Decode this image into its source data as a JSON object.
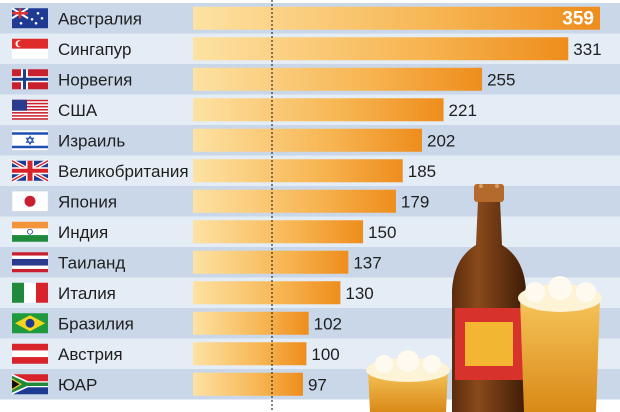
{
  "chart_data": {
    "type": "bar",
    "orientation": "horizontal",
    "title": "",
    "xlabel": "",
    "ylabel": "",
    "xlim": [
      0,
      359
    ],
    "categories": [
      "Австралия",
      "Сингапур",
      "Норвегия",
      "США",
      "Израиль",
      "Великобритания",
      "Япония",
      "Индия",
      "Таиланд",
      "Италия",
      "Бразилия",
      "Австрия",
      "ЮАР"
    ],
    "values": [
      359,
      331,
      255,
      221,
      202,
      185,
      179,
      150,
      137,
      130,
      102,
      100,
      97
    ],
    "value_labels": [
      "359",
      "331",
      "255",
      "221",
      "202",
      "185",
      "179",
      "150",
      "137",
      "130",
      "102",
      "100",
      "97"
    ],
    "flags": [
      "australia-flag-icon",
      "singapore-flag-icon",
      "norway-flag-icon",
      "usa-flag-icon",
      "israel-flag-icon",
      "uk-flag-icon",
      "japan-flag-icon",
      "india-flag-icon",
      "thailand-flag-icon",
      "italy-flag-icon",
      "brazil-flag-icon",
      "austria-flag-icon",
      "south-africa-flag-icon"
    ],
    "grid": false,
    "legend": "none"
  },
  "colors": {
    "stripe_dark": "#c9d7e8",
    "stripe_light": "#e4ecf5",
    "bar_light": "#fbd58a",
    "bar_dark": "#ef9320",
    "text": "#1f1f1f",
    "highlight_label": "#ffffff"
  },
  "decorations": [
    "beer-bottle-icon",
    "beer-mug-icon",
    "beer-glass-icon"
  ]
}
